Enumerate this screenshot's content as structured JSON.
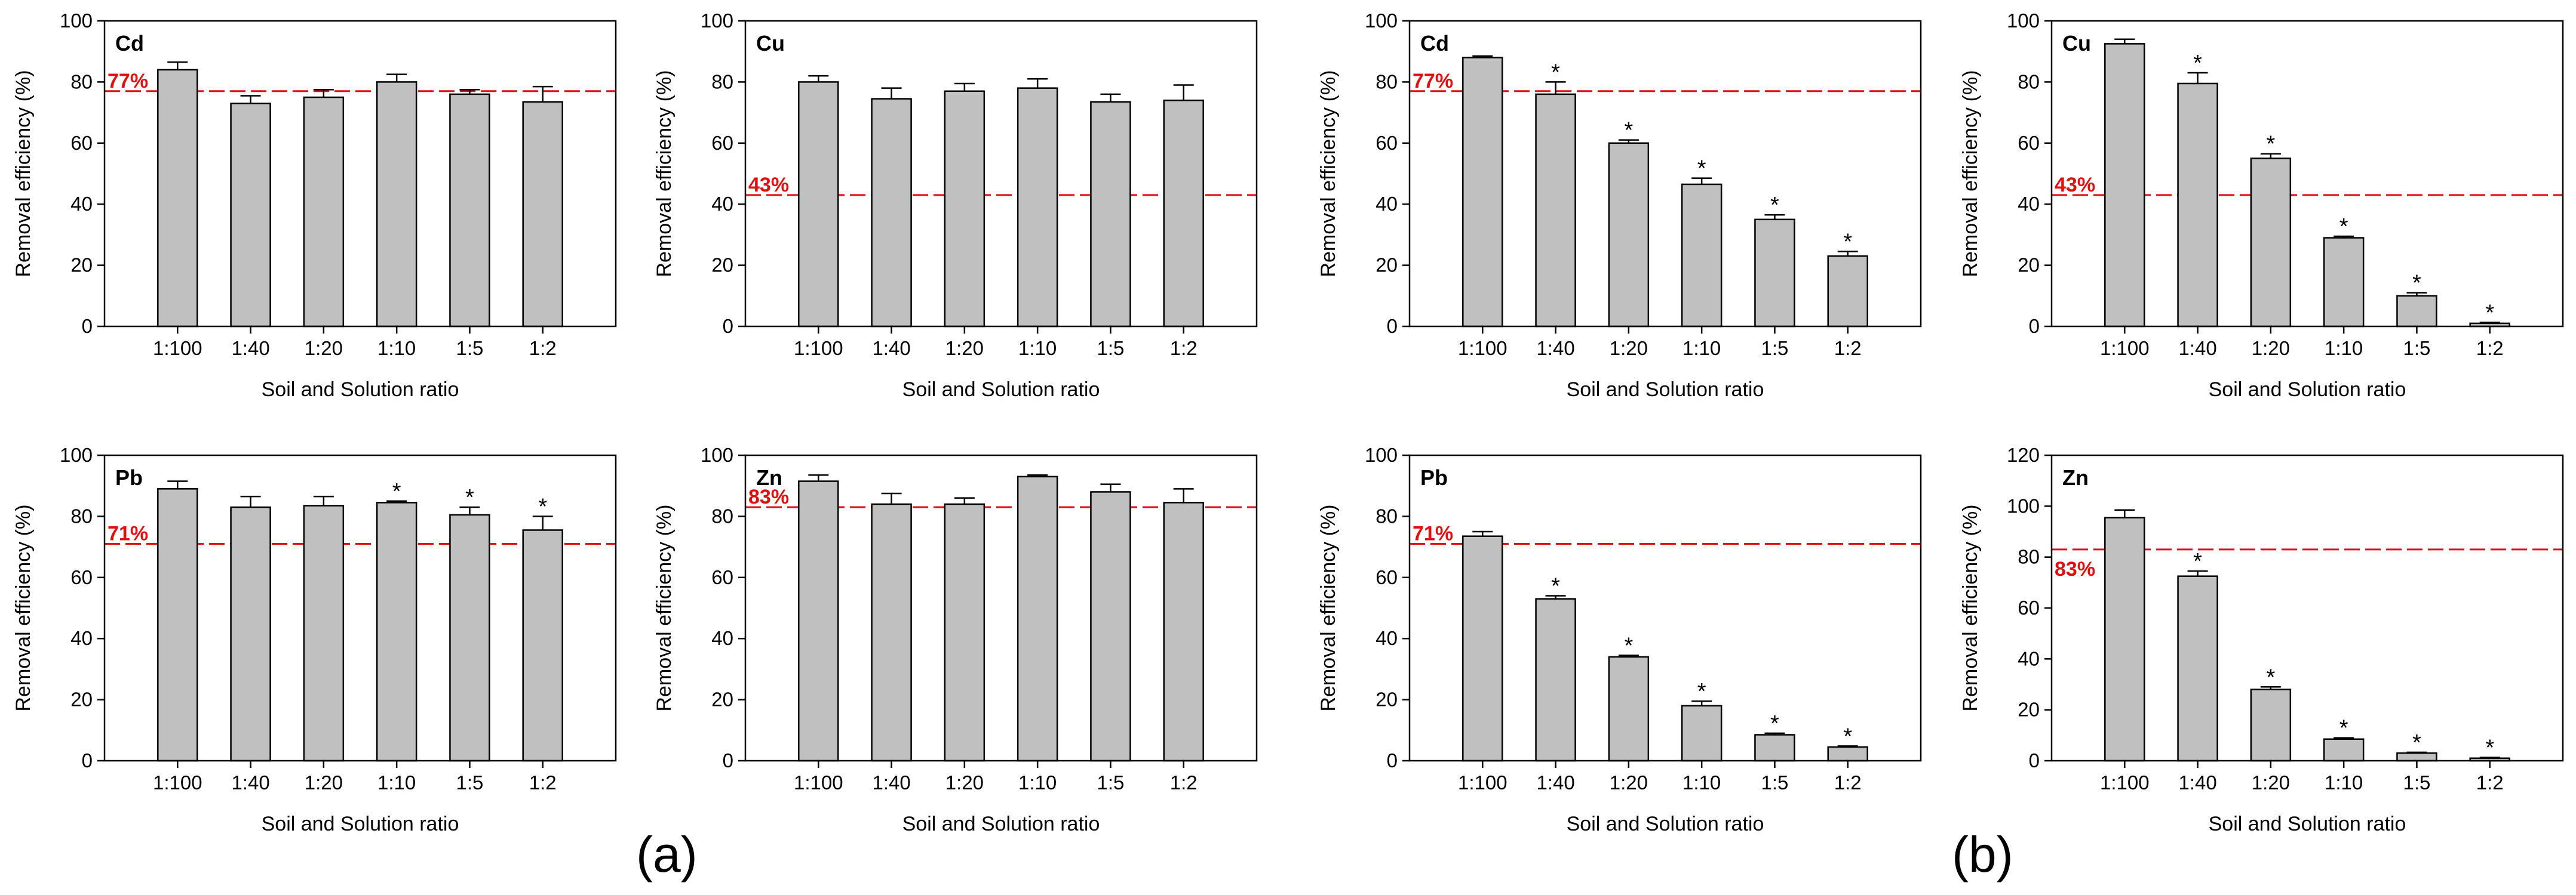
{
  "figure_labels": {
    "a": "(a)",
    "b": "(b)"
  },
  "colors": {
    "bar": "#c0c0c0",
    "threshold": "#e01010",
    "axis": "#000000"
  },
  "chart_data": [
    {
      "type": "bar",
      "metal": "Cd",
      "group": "a",
      "categories": [
        "1:100",
        "1:40",
        "1:20",
        "1:10",
        "1:5",
        "1:2"
      ],
      "values": [
        84,
        73,
        75,
        80,
        76,
        73.5
      ],
      "errors": [
        2.5,
        2.5,
        2.5,
        2.5,
        1.5,
        5
      ],
      "significant": [
        false,
        false,
        false,
        false,
        false,
        false
      ],
      "threshold": 77,
      "threshold_label": "77%",
      "ylim": [
        0,
        100
      ],
      "yticks": [
        "0",
        "20",
        "40",
        "60",
        "80",
        "100"
      ],
      "xlabel": "Soil and Solution ratio",
      "ylabel": "Removal efficiency (%)"
    },
    {
      "type": "bar",
      "metal": "Cu",
      "group": "a",
      "categories": [
        "1:100",
        "1:40",
        "1:20",
        "1:10",
        "1:5",
        "1:2"
      ],
      "values": [
        80,
        74.5,
        77,
        78,
        73.5,
        74
      ],
      "errors": [
        2,
        3.5,
        2.5,
        3,
        2.5,
        5
      ],
      "significant": [
        false,
        false,
        false,
        false,
        false,
        false
      ],
      "threshold": 43,
      "threshold_label": "43%",
      "ylim": [
        0,
        100
      ],
      "yticks": [
        "0",
        "20",
        "40",
        "60",
        "80",
        "100"
      ],
      "xlabel": "Soil and Solution ratio",
      "ylabel": "Removal efficiency (%)"
    },
    {
      "type": "bar",
      "metal": "Cd",
      "group": "b",
      "categories": [
        "1:100",
        "1:40",
        "1:20",
        "1:10",
        "1:5",
        "1:2"
      ],
      "values": [
        88,
        76,
        60,
        46.5,
        35,
        23
      ],
      "errors": [
        0.5,
        4,
        1,
        2,
        1.5,
        1.5
      ],
      "significant": [
        false,
        true,
        true,
        true,
        true,
        true
      ],
      "threshold": 77,
      "threshold_label": "77%",
      "ylim": [
        0,
        100
      ],
      "yticks": [
        "0",
        "20",
        "40",
        "60",
        "80",
        "100"
      ],
      "xlabel": "Soil and Solution ratio",
      "ylabel": "Removal efficiency (%)"
    },
    {
      "type": "bar",
      "metal": "Cu",
      "group": "b",
      "categories": [
        "1:100",
        "1:40",
        "1:20",
        "1:10",
        "1:5",
        "1:2"
      ],
      "values": [
        92.5,
        79.5,
        55,
        29,
        10,
        1
      ],
      "errors": [
        1.5,
        3.5,
        1.5,
        0.5,
        1,
        0.3
      ],
      "significant": [
        false,
        true,
        true,
        true,
        true,
        true
      ],
      "threshold": 43,
      "threshold_label": "43%",
      "ylim": [
        0,
        100
      ],
      "yticks": [
        "0",
        "20",
        "40",
        "60",
        "80",
        "100"
      ],
      "xlabel": "Soil and Solution ratio",
      "ylabel": "Removal efficiency (%)"
    },
    {
      "type": "bar",
      "metal": "Pb",
      "group": "a",
      "categories": [
        "1:100",
        "1:40",
        "1:20",
        "1:10",
        "1:5",
        "1:2"
      ],
      "values": [
        89,
        83,
        83.5,
        84.5,
        80.5,
        75.5
      ],
      "errors": [
        2.5,
        3.5,
        3,
        0.5,
        2.5,
        4.5
      ],
      "significant": [
        false,
        false,
        false,
        true,
        true,
        true
      ],
      "threshold": 71,
      "threshold_label": "71%",
      "ylim": [
        0,
        100
      ],
      "yticks": [
        "0",
        "20",
        "40",
        "60",
        "80",
        "100"
      ],
      "xlabel": "Soil and Solution ratio",
      "ylabel": "Removal efficiency (%)"
    },
    {
      "type": "bar",
      "metal": "Zn",
      "group": "a",
      "categories": [
        "1:100",
        "1:40",
        "1:20",
        "1:10",
        "1:5",
        "1:2"
      ],
      "values": [
        91.5,
        84,
        84,
        93,
        88,
        84.5
      ],
      "errors": [
        2,
        3.5,
        2,
        0.5,
        2.5,
        4.5
      ],
      "significant": [
        false,
        false,
        false,
        false,
        false,
        false
      ],
      "threshold": 83,
      "threshold_label": "83%",
      "ylim": [
        0,
        100
      ],
      "yticks": [
        "0",
        "20",
        "40",
        "60",
        "80",
        "100"
      ],
      "xlabel": "Soil and Solution ratio",
      "ylabel": "Removal efficiency (%)"
    },
    {
      "type": "bar",
      "metal": "Pb",
      "group": "b",
      "categories": [
        "1:100",
        "1:40",
        "1:20",
        "1:10",
        "1:5",
        "1:2"
      ],
      "values": [
        73.5,
        53,
        34,
        18,
        8.5,
        4.5
      ],
      "errors": [
        1.5,
        1,
        0.5,
        1.5,
        0.5,
        0.3
      ],
      "significant": [
        false,
        true,
        true,
        true,
        true,
        true
      ],
      "threshold": 71,
      "threshold_label": "71%",
      "ylim": [
        0,
        100
      ],
      "yticks": [
        "0",
        "20",
        "40",
        "60",
        "80",
        "100"
      ],
      "xlabel": "Soil and Solution ratio",
      "ylabel": "Removal efficiency (%)"
    },
    {
      "type": "bar",
      "metal": "Zn",
      "group": "b",
      "categories": [
        "1:100",
        "1:40",
        "1:20",
        "1:10",
        "1:5",
        "1:2"
      ],
      "values": [
        95.5,
        72.5,
        28,
        8.5,
        3,
        1
      ],
      "errors": [
        3,
        2,
        1,
        0.5,
        0.3,
        0.3
      ],
      "significant": [
        false,
        true,
        true,
        true,
        true,
        true
      ],
      "threshold": 83,
      "threshold_label": "83%",
      "ylim": [
        0,
        120
      ],
      "yticks": [
        "0",
        "20",
        "40",
        "60",
        "80",
        "100",
        "120"
      ],
      "xlabel": "Soil and Solution ratio",
      "ylabel": "Removal efficiency (%)"
    }
  ]
}
